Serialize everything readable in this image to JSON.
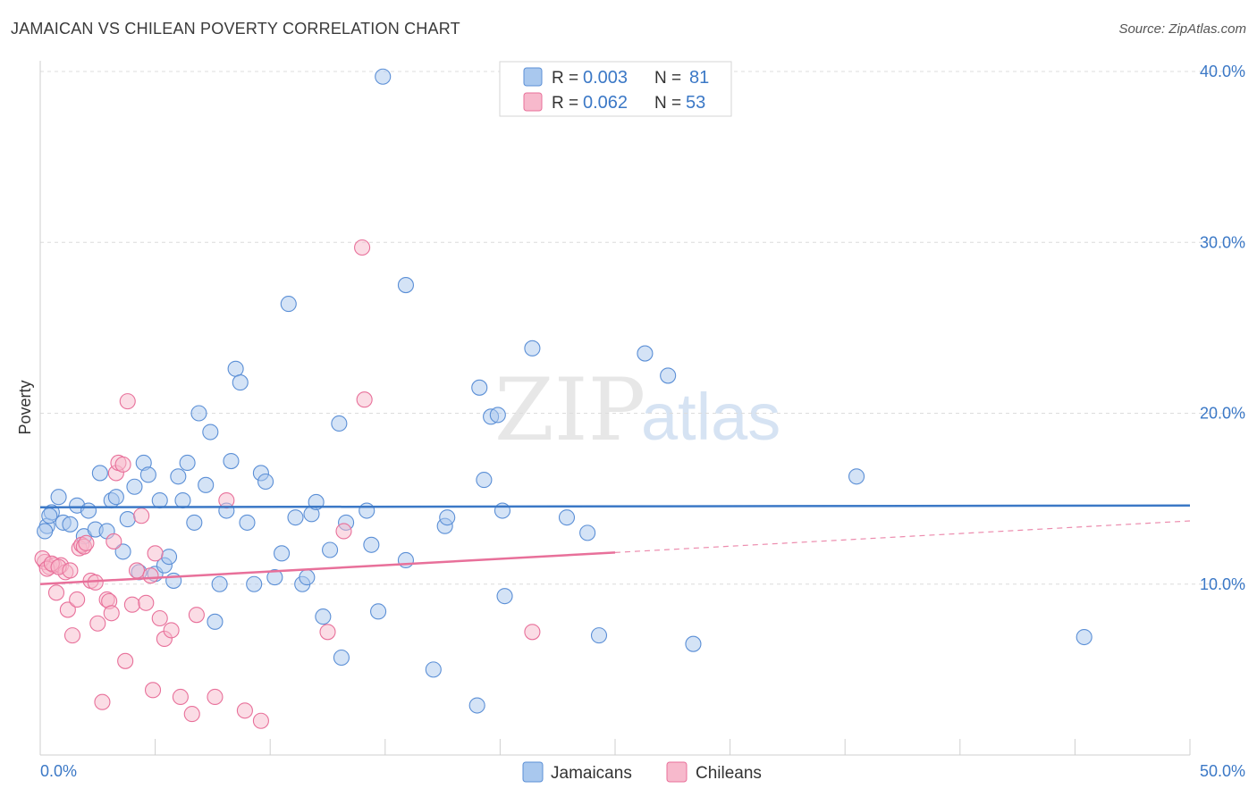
{
  "header": {
    "title": "JAMAICAN VS CHILEAN POVERTY CORRELATION CHART",
    "source": "Source: ZipAtlas.com"
  },
  "watermark": {
    "zip": "ZIP",
    "atlas": "atlas"
  },
  "colors": {
    "blue": "#3b78c6",
    "blue_fill": "#a9c8ee",
    "blue_stroke": "#5b8fd6",
    "pink": "#e8709a",
    "pink_fill": "#f7b9cc",
    "pink_stroke": "#e8709a",
    "grid": "#dcdcdc"
  },
  "stats": [
    {
      "r_label": "R =",
      "r_value": "0.003",
      "n_label": "N =",
      "n_value": "81"
    },
    {
      "r_label": "R =",
      "r_value": "0.062",
      "n_label": "N =",
      "n_value": "53"
    }
  ],
  "chart_data": {
    "type": "scatter",
    "title": "JAMAICAN VS CHILEAN POVERTY CORRELATION CHART",
    "xlabel": "",
    "ylabel": "Poverty",
    "xlim": [
      0,
      50
    ],
    "ylim": [
      0,
      40
    ],
    "x_tick_labels": [
      "0.0%",
      "50.0%"
    ],
    "y_ticks": [
      10,
      20,
      30,
      40
    ],
    "y_tick_labels": [
      "10.0%",
      "20.0%",
      "30.0%",
      "40.0%"
    ],
    "grid": true,
    "legend_position": "top-center",
    "series": [
      {
        "name": "Jamaicans",
        "color": "#3b78c6",
        "trend": {
          "x": [
            0,
            50
          ],
          "y": [
            14.5,
            14.6
          ]
        },
        "points": [
          [
            0.3,
            13.4
          ],
          [
            0.5,
            14.2
          ],
          [
            0.8,
            15.1
          ],
          [
            1.0,
            13.6
          ],
          [
            1.3,
            13.5
          ],
          [
            1.6,
            14.6
          ],
          [
            1.9,
            12.8
          ],
          [
            2.1,
            14.3
          ],
          [
            2.4,
            13.2
          ],
          [
            2.6,
            16.5
          ],
          [
            2.9,
            13.1
          ],
          [
            3.1,
            14.9
          ],
          [
            3.3,
            15.1
          ],
          [
            3.6,
            11.9
          ],
          [
            3.8,
            13.8
          ],
          [
            4.1,
            15.7
          ],
          [
            4.3,
            10.7
          ],
          [
            4.5,
            17.1
          ],
          [
            4.7,
            16.4
          ],
          [
            5.0,
            10.6
          ],
          [
            5.2,
            14.9
          ],
          [
            5.4,
            11.1
          ],
          [
            5.6,
            11.6
          ],
          [
            5.8,
            10.2
          ],
          [
            6.0,
            16.3
          ],
          [
            6.2,
            14.9
          ],
          [
            6.4,
            17.1
          ],
          [
            6.7,
            13.6
          ],
          [
            6.9,
            20.0
          ],
          [
            7.2,
            15.8
          ],
          [
            7.4,
            18.9
          ],
          [
            7.6,
            7.8
          ],
          [
            7.8,
            10.0
          ],
          [
            8.1,
            14.3
          ],
          [
            8.3,
            17.2
          ],
          [
            8.5,
            22.6
          ],
          [
            8.7,
            21.8
          ],
          [
            9.0,
            13.6
          ],
          [
            9.3,
            10.0
          ],
          [
            9.6,
            16.5
          ],
          [
            9.8,
            16.0
          ],
          [
            10.2,
            10.4
          ],
          [
            10.5,
            11.8
          ],
          [
            10.8,
            26.4
          ],
          [
            11.1,
            13.9
          ],
          [
            11.4,
            10.0
          ],
          [
            11.6,
            10.4
          ],
          [
            11.8,
            14.1
          ],
          [
            12.0,
            14.8
          ],
          [
            12.3,
            8.1
          ],
          [
            12.6,
            12.0
          ],
          [
            13.0,
            19.4
          ],
          [
            13.1,
            5.7
          ],
          [
            13.3,
            13.6
          ],
          [
            14.2,
            14.3
          ],
          [
            14.4,
            12.3
          ],
          [
            14.7,
            8.4
          ],
          [
            14.9,
            39.7
          ],
          [
            15.9,
            11.4
          ],
          [
            15.9,
            27.5
          ],
          [
            17.1,
            5.0
          ],
          [
            17.6,
            13.4
          ],
          [
            17.7,
            13.9
          ],
          [
            19.0,
            2.9
          ],
          [
            19.1,
            21.5
          ],
          [
            19.3,
            16.1
          ],
          [
            19.6,
            19.8
          ],
          [
            19.9,
            19.9
          ],
          [
            20.1,
            14.3
          ],
          [
            20.2,
            9.3
          ],
          [
            21.4,
            23.8
          ],
          [
            22.9,
            13.9
          ],
          [
            23.8,
            13.0
          ],
          [
            24.3,
            7.0
          ],
          [
            26.3,
            23.5
          ],
          [
            27.3,
            22.2
          ],
          [
            28.4,
            6.5
          ],
          [
            35.5,
            16.3
          ],
          [
            45.4,
            6.9
          ],
          [
            0.2,
            13.1
          ],
          [
            0.4,
            14.0
          ]
        ]
      },
      {
        "name": "Chileans",
        "color": "#e8709a",
        "trend": {
          "x": [
            0,
            50
          ],
          "y": [
            10.0,
            13.7
          ],
          "solid_until": 25
        },
        "points": [
          [
            0.2,
            11.3
          ],
          [
            0.4,
            11.0
          ],
          [
            0.6,
            11.1
          ],
          [
            0.7,
            9.5
          ],
          [
            0.9,
            11.1
          ],
          [
            1.1,
            10.7
          ],
          [
            1.2,
            8.5
          ],
          [
            1.4,
            7.0
          ],
          [
            1.6,
            9.1
          ],
          [
            1.7,
            12.1
          ],
          [
            1.8,
            12.3
          ],
          [
            1.9,
            12.2
          ],
          [
            2.2,
            10.2
          ],
          [
            2.4,
            10.1
          ],
          [
            2.5,
            7.7
          ],
          [
            2.7,
            3.1
          ],
          [
            2.9,
            9.1
          ],
          [
            3.0,
            9.0
          ],
          [
            3.1,
            8.3
          ],
          [
            3.2,
            12.5
          ],
          [
            3.3,
            16.5
          ],
          [
            3.4,
            17.1
          ],
          [
            3.6,
            17.0
          ],
          [
            3.7,
            5.5
          ],
          [
            3.8,
            20.7
          ],
          [
            4.0,
            8.8
          ],
          [
            4.2,
            10.8
          ],
          [
            4.4,
            14.0
          ],
          [
            4.6,
            8.9
          ],
          [
            4.8,
            10.5
          ],
          [
            4.9,
            3.8
          ],
          [
            5.0,
            11.8
          ],
          [
            5.2,
            8.0
          ],
          [
            5.4,
            6.8
          ],
          [
            5.7,
            7.3
          ],
          [
            6.1,
            3.4
          ],
          [
            6.6,
            2.4
          ],
          [
            6.8,
            8.2
          ],
          [
            7.6,
            3.4
          ],
          [
            8.1,
            14.9
          ],
          [
            8.9,
            2.6
          ],
          [
            9.6,
            2.0
          ],
          [
            12.5,
            7.2
          ],
          [
            13.2,
            13.1
          ],
          [
            14.0,
            29.7
          ],
          [
            14.1,
            20.8
          ],
          [
            21.4,
            7.2
          ],
          [
            0.1,
            11.5
          ],
          [
            0.3,
            10.9
          ],
          [
            0.5,
            11.2
          ],
          [
            0.8,
            11.0
          ],
          [
            1.3,
            10.8
          ],
          [
            2.0,
            12.4
          ]
        ]
      }
    ]
  },
  "bottom_legend": {
    "jamaicans": "Jamaicans",
    "chileans": "Chileans"
  }
}
